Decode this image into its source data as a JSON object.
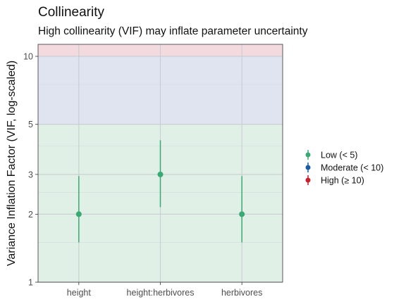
{
  "chart_data": {
    "type": "scatter",
    "title": "Collinearity",
    "subtitle": "High collinearity (VIF) may inflate parameter uncertainty",
    "xlabel": "",
    "ylabel": "Variance Inflation Factor (VIF, log-scaled)",
    "yscale": "log",
    "ylim": [
      1,
      11.3
    ],
    "yticks": [
      1,
      2,
      3,
      5,
      10
    ],
    "grid": true,
    "legend_position": "right",
    "categories": [
      "height",
      "height:herbivores",
      "herbivores"
    ],
    "points": [
      {
        "term": "height",
        "vif": 2.0,
        "ci_low": 1.5,
        "ci_high": 2.95,
        "group": "Low (< 5)"
      },
      {
        "term": "height:herbivores",
        "vif": 3.0,
        "ci_low": 2.15,
        "ci_high": 4.25,
        "group": "Low (< 5)"
      },
      {
        "term": "herbivores",
        "vif": 2.0,
        "ci_low": 1.5,
        "ci_high": 2.95,
        "group": "Low (< 5)"
      }
    ],
    "zones": [
      {
        "name": "low",
        "from": 1,
        "to": 5,
        "color": "#E1F0E7"
      },
      {
        "name": "moderate",
        "from": 5,
        "to": 10,
        "color": "#DFE4F0"
      },
      {
        "name": "high",
        "from": 10,
        "to": 11.3,
        "color": "#F2DADE"
      }
    ],
    "legend": [
      {
        "label": "Low (< 5)",
        "color": "#3AAA74"
      },
      {
        "label": "Moderate (< 10)",
        "color": "#1A5CA8"
      },
      {
        "label": "High (≥ 10)",
        "color": "#C8202E"
      }
    ]
  }
}
